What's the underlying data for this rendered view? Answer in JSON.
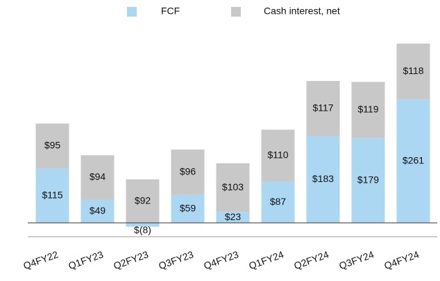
{
  "chart_data": {
    "type": "bar",
    "stacked": true,
    "categories": [
      "Q4FY22",
      "Q1FY23",
      "Q2FY23",
      "Q3FY23",
      "Q4FY23",
      "Q1FY24",
      "Q2FY24",
      "Q3FY24",
      "Q4FY24"
    ],
    "series": [
      {
        "name": "FCF",
        "color": "#acd7f2",
        "values": [
          115,
          49,
          -8,
          59,
          23,
          87,
          183,
          179,
          261
        ],
        "value_labels": [
          "$115",
          "$49",
          "$(8)",
          "$59",
          "$23",
          "$87",
          "$183",
          "$179",
          "$261"
        ]
      },
      {
        "name": "Cash interest, net",
        "color": "#c8c8c8",
        "values": [
          95,
          94,
          92,
          96,
          103,
          110,
          117,
          119,
          118
        ],
        "value_labels": [
          "$95",
          "$94",
          "$92",
          "$96",
          "$103",
          "$110",
          "$117",
          "$119",
          "$118"
        ]
      }
    ],
    "legend": "top"
  }
}
